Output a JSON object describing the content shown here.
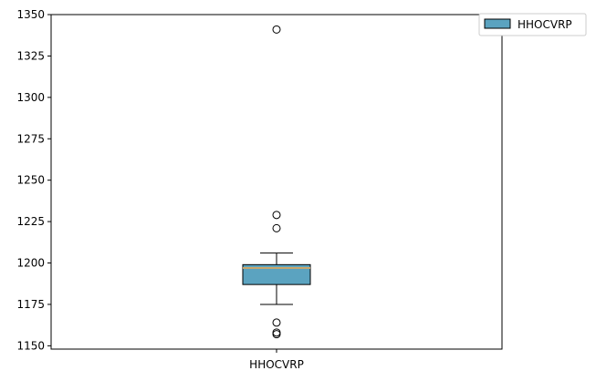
{
  "chart_data": {
    "type": "box",
    "title": "",
    "xlabel": "",
    "ylabel": "",
    "ylim": [
      1148,
      1350
    ],
    "yticks": [
      1150,
      1175,
      1200,
      1225,
      1250,
      1275,
      1300,
      1325,
      1350
    ],
    "categories": [
      "HHOCVRP"
    ],
    "grid": false,
    "legend": {
      "placement": "top-right",
      "entries": [
        "HHOCVRP"
      ]
    },
    "series": [
      {
        "name": "HHOCVRP",
        "color": "#5ba3c0",
        "median_color": "#c8a66b",
        "whisker_low": 1175,
        "q1": 1187,
        "median": 1197,
        "q3": 1199,
        "whisker_high": 1206,
        "outliers": [
          1341,
          1229,
          1221,
          1164,
          1158,
          1157
        ]
      }
    ]
  }
}
